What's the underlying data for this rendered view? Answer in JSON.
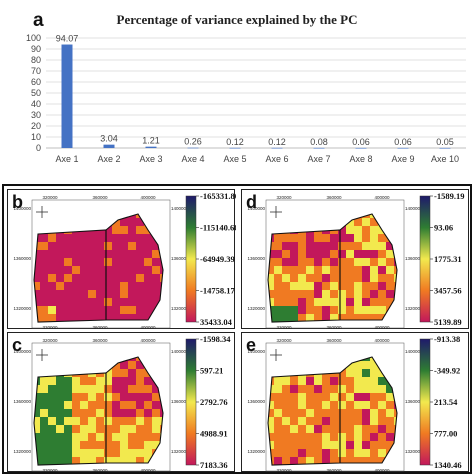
{
  "panel_a": {
    "letter": "a"
  },
  "chart_data": {
    "type": "bar",
    "title": "Percentage of variance explained by the PC",
    "categories": [
      "Axe 1",
      "Axe 2",
      "Axe 3",
      "Axe 4",
      "Axe 5",
      "Axe 6",
      "Axe 7",
      "Axe 8",
      "Axe 9",
      "Axe 10"
    ],
    "values": [
      94.07,
      3.04,
      1.21,
      0.26,
      0.12,
      0.12,
      0.08,
      0.06,
      0.06,
      0.05
    ],
    "value_labels": [
      "94.07",
      "3.04",
      "1.21",
      "0.26",
      "0.12",
      "0.12",
      "0.08",
      "0.06",
      "0.06",
      "0.05"
    ],
    "ylim": [
      0,
      100
    ],
    "yticks": [
      0,
      10,
      20,
      30,
      40,
      50,
      60,
      70,
      80,
      90,
      100
    ],
    "grid": true,
    "bar_color": "#4472c4"
  },
  "maps": [
    {
      "letter": "b",
      "legend": [
        "-165331.80",
        "-115140.60",
        "-64949.39",
        "-14758.17",
        "35433.04"
      ],
      "palette": [
        "#1f1a6b",
        "#2e7d32",
        "#f2e94e",
        "#f07a22",
        "#c2185b"
      ],
      "x_ticks": [
        "320000",
        "360000",
        "400000"
      ],
      "y_ticks": [
        "1400000",
        "1360000",
        "1320000"
      ]
    },
    {
      "letter": "d",
      "legend": [
        "-1589.19",
        "93.06",
        "1775.31",
        "3457.56",
        "5139.89"
      ],
      "palette": [
        "#1f1a6b",
        "#2e7d32",
        "#f2e94e",
        "#f07a22",
        "#c2185b"
      ],
      "x_ticks": [
        "320000",
        "360000",
        "400000"
      ],
      "y_ticks": [
        "1400000",
        "1360000",
        "1320000"
      ]
    },
    {
      "letter": "c",
      "legend": [
        "-1598.34",
        "597.21",
        "2792.76",
        "4988.91",
        "7183.36"
      ],
      "palette": [
        "#1f1a6b",
        "#2e7d32",
        "#f2e94e",
        "#f07a22",
        "#c2185b"
      ],
      "x_ticks": [
        "320000",
        "360000",
        "400000"
      ],
      "y_ticks": [
        "1400000",
        "1360000",
        "1320000"
      ]
    },
    {
      "letter": "e",
      "legend": [
        "-913.38",
        "-349.92",
        "213.54",
        "777.00",
        "1340.46"
      ],
      "palette": [
        "#1f1a6b",
        "#2e7d32",
        "#f2e94e",
        "#f07a22",
        "#c2185b"
      ],
      "x_ticks": [
        "320000",
        "360000",
        "400000"
      ],
      "y_ticks": [
        "1400000",
        "1360000",
        "1320000"
      ]
    }
  ]
}
